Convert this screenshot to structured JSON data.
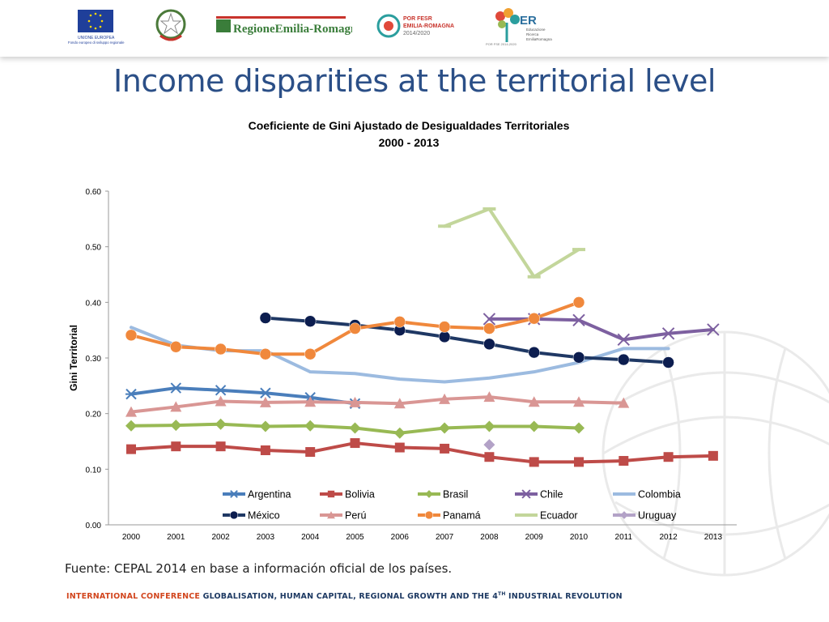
{
  "logos": {
    "eu_text_1": "UNIONE EUROPEA",
    "eu_text_2": "Fondo europeo di sviluppo regionale",
    "region": "RegioneEmilia-Romagna",
    "por_1": "POR FESR",
    "por_2": "EMILIA-ROMAGNA",
    "por_3": "2014/2020",
    "er_big": "ER",
    "er_1": "Educazione",
    "er_2": "Ricerca",
    "er_3": "EmiliaRomagna",
    "er_small": "POR FSE 2014-2020"
  },
  "slide": {
    "title": "Income disparities at the territorial level",
    "source": "Fuente: CEPAL 2014 en base a información oficial de los países.",
    "footer_conf": "INTERNATIONAL CONFERENCE",
    "footer_text": "GLOBALISATION, HUMAN CAPITAL, REGIONAL GROWTH AND THE 4",
    "footer_sup": "TH",
    "footer_end": " INDUSTRIAL REVOLUTION"
  },
  "colors": {
    "title": "#2b4f87",
    "Argentina": "#4a7ebb",
    "Bolivia": "#be4b48",
    "Brasil": "#98b954",
    "Chile": "#7d60a0",
    "Colombia": "#9cbbe0",
    "México": "#1f3864",
    "Perú": "#d99694",
    "Panamá": "#f0883c",
    "Ecuador": "#c3d69b",
    "Uruguay": "#b3a2c7"
  },
  "chart_data": {
    "type": "line",
    "title": "Coeficiente de Gini  Ajustado de Desigualdades Territoriales",
    "subtitle": "2000 - 2013",
    "xlabel": "",
    "ylabel": "Gini Territorial",
    "ylim": [
      0,
      0.6
    ],
    "yticks": [
      "0.00",
      "0.10",
      "0.20",
      "0.30",
      "0.40",
      "0.50",
      "0.60"
    ],
    "x": [
      "2000",
      "2001",
      "2002",
      "2003",
      "2004",
      "2005",
      "2006",
      "2007",
      "2008",
      "2009",
      "2010",
      "2011",
      "2012",
      "2013"
    ],
    "legend_position": "bottom-inside",
    "series": [
      {
        "name": "Argentina",
        "marker": "star",
        "values": [
          0.235,
          0.246,
          0.242,
          0.237,
          0.229,
          0.218,
          null,
          null,
          null,
          null,
          null,
          null,
          null,
          null
        ]
      },
      {
        "name": "Bolivia",
        "marker": "square",
        "values": [
          0.136,
          0.141,
          0.141,
          0.134,
          0.131,
          0.147,
          0.139,
          0.137,
          0.122,
          0.113,
          0.113,
          0.115,
          0.122,
          0.124
        ]
      },
      {
        "name": "Brasil",
        "marker": "diamond",
        "values": [
          0.178,
          0.179,
          0.181,
          0.177,
          0.178,
          0.174,
          0.165,
          0.174,
          0.177,
          0.177,
          0.174,
          null,
          null,
          null
        ]
      },
      {
        "name": "Chile",
        "marker": "x",
        "values": [
          null,
          null,
          null,
          null,
          null,
          null,
          null,
          null,
          0.37,
          0.37,
          0.368,
          0.333,
          0.344,
          0.351
        ]
      },
      {
        "name": "Colombia",
        "marker": "none",
        "values": [
          0.355,
          0.323,
          0.313,
          0.313,
          0.275,
          0.272,
          0.262,
          0.257,
          0.264,
          0.275,
          0.292,
          0.317,
          0.317,
          null
        ]
      },
      {
        "name": "México",
        "marker": "circle",
        "values": [
          null,
          null,
          null,
          0.372,
          0.366,
          0.359,
          0.35,
          0.338,
          0.325,
          0.31,
          0.301,
          0.297,
          0.292,
          null
        ]
      },
      {
        "name": "Perú",
        "marker": "triangle",
        "values": [
          0.203,
          0.212,
          0.222,
          0.22,
          0.221,
          0.22,
          0.218,
          0.226,
          0.23,
          0.221,
          0.221,
          0.219,
          null,
          null
        ]
      },
      {
        "name": "Panamá",
        "marker": "circle",
        "values": [
          0.341,
          0.32,
          0.316,
          0.307,
          0.307,
          0.353,
          0.365,
          0.356,
          0.353,
          0.371,
          0.4,
          null,
          null,
          null
        ]
      },
      {
        "name": "Ecuador",
        "marker": "dash",
        "values": [
          null,
          null,
          null,
          null,
          null,
          null,
          null,
          0.537,
          0.568,
          0.446,
          0.495,
          null,
          null,
          null
        ]
      },
      {
        "name": "Uruguay",
        "marker": "diamond",
        "values": [
          null,
          null,
          null,
          null,
          null,
          null,
          null,
          null,
          0.144,
          null,
          null,
          null,
          null,
          null
        ]
      }
    ]
  }
}
